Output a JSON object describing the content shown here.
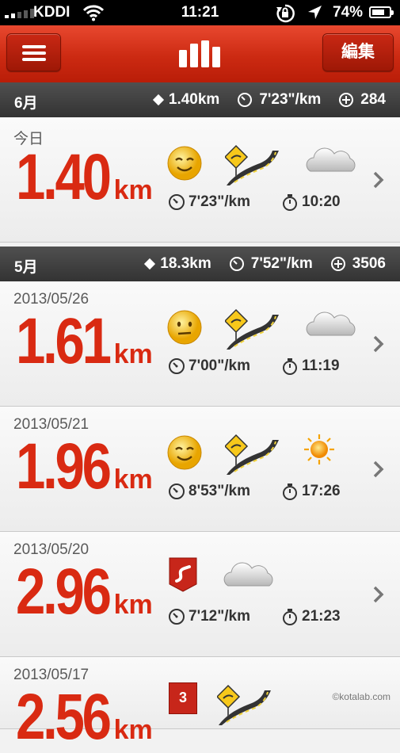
{
  "status": {
    "carrier": "KDDI",
    "time": "11:21",
    "battery": "74%",
    "battery_level": 0.74
  },
  "nav": {
    "edit_label": "編集"
  },
  "sections": [
    {
      "month": "6月",
      "distance": "1.40km",
      "pace": "7'23\"/km",
      "fuel": "284"
    },
    {
      "month": "5月",
      "distance": "18.3km",
      "pace": "7'52\"/km",
      "fuel": "3506"
    }
  ],
  "runs": [
    {
      "date": "今日",
      "distance": "1.40",
      "unit": "km",
      "pace": "7'23\"/km",
      "duration": "10:20",
      "mood": "happy-face-icon",
      "terrain": "road-icon",
      "weather": "cloudy-icon"
    },
    {
      "date": "2013/05/26",
      "distance": "1.61",
      "unit": "km",
      "pace": "7'00\"/km",
      "duration": "11:19",
      "mood": "neutral-face-icon",
      "terrain": "road-icon",
      "weather": "cloudy-icon"
    },
    {
      "date": "2013/05/21",
      "distance": "1.96",
      "unit": "km",
      "pace": "8'53\"/km",
      "duration": "17:26",
      "mood": "happy-face-icon",
      "terrain": "road-icon",
      "weather": "sunny-icon"
    },
    {
      "date": "2013/05/20",
      "distance": "2.96",
      "unit": "km",
      "pace": "7'12\"/km",
      "duration": "21:23",
      "mood": "route-badge-icon",
      "terrain": "",
      "weather": "cloudy-icon"
    },
    {
      "date": "2013/05/17",
      "distance": "2.56",
      "unit": "km",
      "badge": "3",
      "mood": "number-badge-icon",
      "terrain": "road-icon"
    }
  ],
  "watermark": "©kotalab.com",
  "colors": {
    "accent": "#d92a12",
    "navbar": "#cc2a12",
    "section": "#3a3a3a"
  }
}
